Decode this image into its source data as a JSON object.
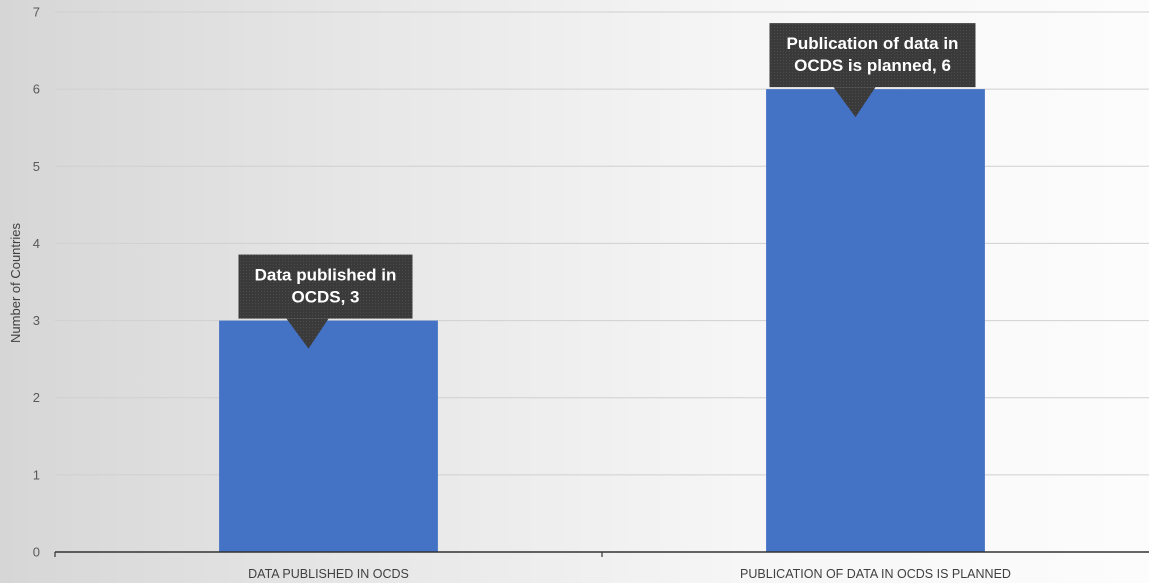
{
  "chart_data": {
    "type": "bar",
    "title": "",
    "xlabel": "",
    "ylabel": "Number of Countries",
    "categories": [
      "DATA PUBLISHED IN OCDS",
      "PUBLICATION OF DATA IN OCDS IS PLANNED"
    ],
    "values": [
      3,
      6
    ],
    "ylim": [
      0,
      7
    ],
    "yticks": [
      "0",
      "1",
      "2",
      "3",
      "4",
      "5",
      "6",
      "7"
    ],
    "grid": true,
    "legend": "none",
    "data_labels": [
      [
        "Data published in",
        "OCDS, 3"
      ],
      [
        "Publication of data in",
        "OCDS is planned, 6"
      ]
    ],
    "colors": {
      "bar": "#4472C4",
      "gridline": "#d0d0d0",
      "axis": "#333333",
      "callout": "#3a3a3a"
    }
  }
}
